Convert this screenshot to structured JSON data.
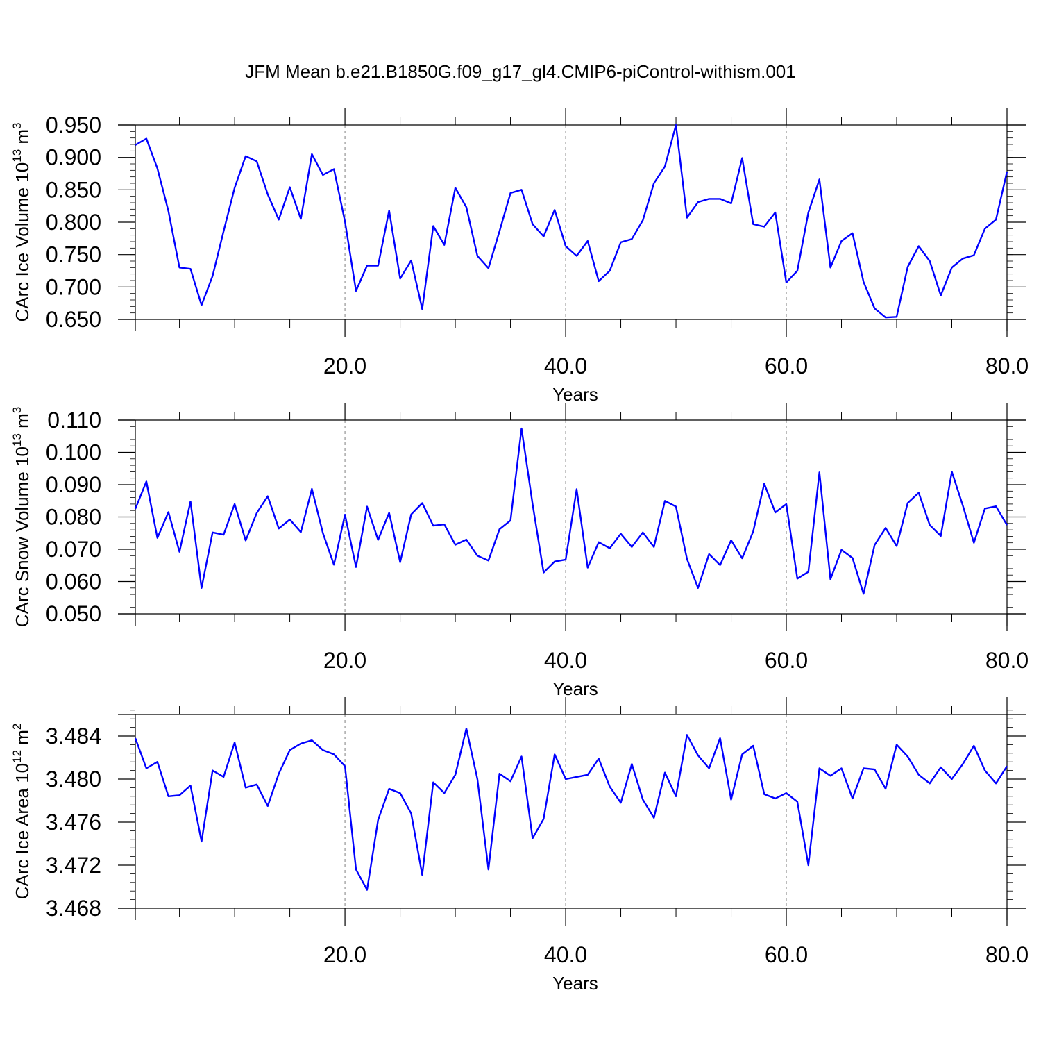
{
  "title": "JFM Mean b.e21.B1850G.f09_g17_gl4.CMIP6-piControl-withism.001",
  "colors": {
    "line": "#0000ff",
    "axis": "#000000",
    "refline": "#808080"
  },
  "chart_data": [
    {
      "type": "line",
      "ylabel": "CArc Ice Volume 10",
      "ylabel_exp": "13",
      "ylabel_unit": "m",
      "ylabel_unit_exp": "3",
      "xlabel": "Years",
      "xlim": [
        1,
        80
      ],
      "ylim": [
        0.65,
        0.95
      ],
      "xticks": [
        20,
        40,
        60,
        80
      ],
      "xtick_labels": [
        "20.0",
        "40.0",
        "60.0",
        "80.0"
      ],
      "yticks": [
        0.65,
        0.7,
        0.75,
        0.8,
        0.85,
        0.9,
        0.95
      ],
      "ytick_labels": [
        "0.650",
        "0.700",
        "0.750",
        "0.800",
        "0.850",
        "0.900",
        "0.950"
      ],
      "y_minor_step": 0.01,
      "ref_lines_x": [
        20,
        40,
        60
      ],
      "series": [
        {
          "values": [
            0.919,
            0.929,
            0.883,
            0.817,
            0.73,
            0.728,
            0.672,
            0.717,
            0.786,
            0.853,
            0.902,
            0.894,
            0.843,
            0.804,
            0.854,
            0.805,
            0.905,
            0.873,
            0.882,
            0.801,
            0.694,
            0.733,
            0.733,
            0.818,
            0.713,
            0.741,
            0.666,
            0.794,
            0.765,
            0.853,
            0.823,
            0.748,
            0.729,
            0.786,
            0.845,
            0.85,
            0.797,
            0.778,
            0.819,
            0.763,
            0.748,
            0.771,
            0.709,
            0.725,
            0.769,
            0.774,
            0.803,
            0.86,
            0.886,
            0.95,
            0.807,
            0.831,
            0.836,
            0.836,
            0.829,
            0.899,
            0.797,
            0.793,
            0.815,
            0.707,
            0.725,
            0.815,
            0.866,
            0.73,
            0.771,
            0.783,
            0.708,
            0.667,
            0.653,
            0.654,
            0.731,
            0.763,
            0.74,
            0.687,
            0.73,
            0.744,
            0.749,
            0.79,
            0.804,
            0.878
          ]
        }
      ]
    },
    {
      "type": "line",
      "ylabel": "CArc Snow Volume 10",
      "ylabel_exp": "13",
      "ylabel_unit": "m",
      "ylabel_unit_exp": "3",
      "xlabel": "Years",
      "xlim": [
        1,
        80
      ],
      "ylim": [
        0.05,
        0.11
      ],
      "xticks": [
        20,
        40,
        60,
        80
      ],
      "xtick_labels": [
        "20.0",
        "40.0",
        "60.0",
        "80.0"
      ],
      "yticks": [
        0.05,
        0.06,
        0.07,
        0.08,
        0.09,
        0.1,
        0.11
      ],
      "ytick_labels": [
        "0.050",
        "0.060",
        "0.070",
        "0.080",
        "0.090",
        "0.100",
        "0.110"
      ],
      "y_minor_step": 0.002,
      "ref_lines_x": [
        20,
        40,
        60
      ],
      "series": [
        {
          "values": [
            0.0825,
            0.091,
            0.0735,
            0.0815,
            0.0692,
            0.0848,
            0.058,
            0.0752,
            0.0745,
            0.084,
            0.0727,
            0.0812,
            0.0864,
            0.0764,
            0.0792,
            0.0753,
            0.0887,
            0.075,
            0.0652,
            0.0807,
            0.0645,
            0.0832,
            0.0729,
            0.0813,
            0.066,
            0.0808,
            0.0843,
            0.0773,
            0.0777,
            0.0714,
            0.073,
            0.068,
            0.0665,
            0.0762,
            0.0789,
            0.1074,
            0.084,
            0.0628,
            0.0662,
            0.0668,
            0.0886,
            0.0643,
            0.0722,
            0.0703,
            0.0748,
            0.0707,
            0.0752,
            0.0707,
            0.085,
            0.0832,
            0.067,
            0.058,
            0.0685,
            0.0651,
            0.0728,
            0.0672,
            0.0755,
            0.0903,
            0.0814,
            0.084,
            0.0609,
            0.063,
            0.0938,
            0.0607,
            0.0698,
            0.0673,
            0.0562,
            0.0713,
            0.0766,
            0.071,
            0.0843,
            0.0875,
            0.0775,
            0.0741,
            0.094,
            0.0835,
            0.072,
            0.0826,
            0.0833,
            0.0775
          ]
        }
      ]
    },
    {
      "type": "line",
      "ylabel": "CArc Ice Area 10",
      "ylabel_exp": "12",
      "ylabel_unit": "m",
      "ylabel_unit_exp": "2",
      "xlabel": "Years",
      "xlim": [
        1,
        80
      ],
      "ylim": [
        3.468,
        3.486
      ],
      "xticks": [
        20,
        40,
        60,
        80
      ],
      "xtick_labels": [
        "20.0",
        "40.0",
        "60.0",
        "80.0"
      ],
      "yticks": [
        3.468,
        3.472,
        3.476,
        3.48,
        3.484
      ],
      "ytick_labels": [
        "3.468",
        "3.472",
        "3.476",
        "3.480",
        "3.484"
      ],
      "y_minor_step": 0.0008,
      "ref_lines_x": [
        20,
        40,
        60
      ],
      "series": [
        {
          "values": [
            3.4838,
            3.481,
            3.4816,
            3.4784,
            3.4785,
            3.4794,
            3.4742,
            3.4808,
            3.4802,
            3.4834,
            3.4792,
            3.4795,
            3.4775,
            3.4805,
            3.4827,
            3.4833,
            3.4836,
            3.4827,
            3.4823,
            3.4812,
            3.4716,
            3.4697,
            3.4762,
            3.4791,
            3.4787,
            3.4768,
            3.4711,
            3.4797,
            3.4787,
            3.4804,
            3.4847,
            3.48,
            3.4716,
            3.4805,
            3.4798,
            3.4821,
            3.4745,
            3.4763,
            3.4823,
            3.48,
            3.4802,
            3.4804,
            3.4819,
            3.4793,
            3.4778,
            3.4814,
            3.4781,
            3.4764,
            3.4806,
            3.4784,
            3.4841,
            3.4822,
            3.481,
            3.4838,
            3.4781,
            3.4823,
            3.4831,
            3.4786,
            3.4782,
            3.4787,
            3.4779,
            3.472,
            3.481,
            3.4803,
            3.481,
            3.4782,
            3.481,
            3.4809,
            3.4791,
            3.4832,
            3.4821,
            3.4804,
            3.4796,
            3.4811,
            3.48,
            3.4814,
            3.4831,
            3.4808,
            3.4796,
            3.4812
          ]
        }
      ]
    }
  ]
}
